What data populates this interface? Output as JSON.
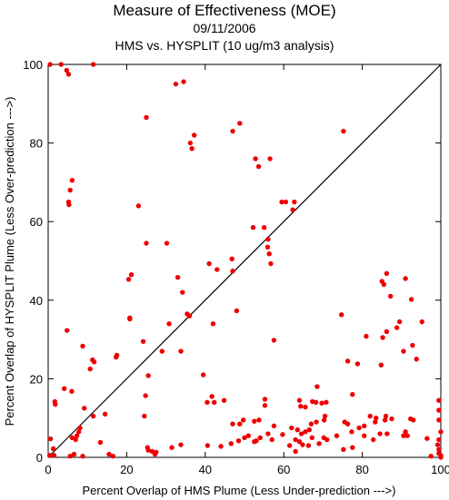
{
  "chart_data": {
    "type": "scatter",
    "title": "Measure of Effectiveness (MOE)",
    "subtitle_date": "09/11/2006",
    "subtitle_analysis": "HMS vs. HYSPLIT  (10 ug/m3 analysis)",
    "xlabel": "Percent Overlap of HMS Plume (Less Under-prediction --->)",
    "ylabel": "Percent Overlap of HYSPLIT Plume (Less Over-prediction --->)",
    "xlim": [
      0,
      100
    ],
    "ylim": [
      0,
      100
    ],
    "x_ticks": [
      "0",
      "20",
      "40",
      "60",
      "80",
      "100"
    ],
    "y_ticks": [
      "0",
      "20",
      "40",
      "60",
      "80",
      "100"
    ],
    "grid": false,
    "reference_line": "diagonal y = x",
    "point_color": "#ee0000",
    "series": [
      {
        "points": [
          [
            0.5,
            100
          ],
          [
            3.3,
            100
          ],
          [
            4.7,
            98.5
          ],
          [
            5.2,
            97.5
          ],
          [
            11.5,
            100
          ],
          [
            32.5,
            95
          ],
          [
            34.5,
            95.6
          ],
          [
            25,
            86.5
          ],
          [
            47,
            83
          ],
          [
            48.8,
            85
          ],
          [
            75.2,
            83
          ],
          [
            37.2,
            82
          ],
          [
            36.2,
            80
          ],
          [
            36.6,
            78.6
          ],
          [
            52.8,
            76
          ],
          [
            53.6,
            74
          ],
          [
            56.5,
            76
          ],
          [
            5.6,
            68
          ],
          [
            6.1,
            70.5
          ],
          [
            5.2,
            65
          ],
          [
            5.3,
            64.3
          ],
          [
            23,
            64
          ],
          [
            59.5,
            65
          ],
          [
            60.5,
            65
          ],
          [
            62.7,
            65
          ],
          [
            62.3,
            63
          ],
          [
            25,
            54.5
          ],
          [
            30.2,
            54.5
          ],
          [
            56,
            55.5
          ],
          [
            55.9,
            53.5
          ],
          [
            56.3,
            51.8
          ],
          [
            52.2,
            58.5
          ],
          [
            55,
            58.5
          ],
          [
            41,
            49.3
          ],
          [
            43,
            47.8
          ],
          [
            46.8,
            50.5
          ],
          [
            47,
            47.4
          ],
          [
            56.7,
            49.3
          ],
          [
            21.2,
            46.5
          ],
          [
            20.5,
            45.3
          ],
          [
            33,
            45.8
          ],
          [
            34.2,
            42
          ],
          [
            35.4,
            36.5
          ],
          [
            36,
            36
          ],
          [
            48,
            37.3
          ],
          [
            42,
            34
          ],
          [
            30.8,
            34
          ],
          [
            20.8,
            35.5
          ],
          [
            20.8,
            35.2
          ],
          [
            24.2,
            29.5
          ],
          [
            57.5,
            29.8
          ],
          [
            74.7,
            36.3
          ],
          [
            4.8,
            32.3
          ],
          [
            85,
            44.8
          ],
          [
            85.5,
            44
          ],
          [
            86.2,
            46.8
          ],
          [
            87.2,
            41
          ],
          [
            91,
            45.5
          ],
          [
            92.5,
            40.2
          ],
          [
            95.2,
            34.5
          ],
          [
            89.5,
            34.5
          ],
          [
            88.8,
            33
          ],
          [
            86.2,
            32
          ],
          [
            81,
            30.8
          ],
          [
            85.2,
            30.5
          ],
          [
            92.8,
            28.5
          ],
          [
            93.8,
            25
          ],
          [
            90.5,
            27
          ],
          [
            84.8,
            23.5
          ],
          [
            76.3,
            24.5
          ],
          [
            78.8,
            23.8
          ],
          [
            77.5,
            16
          ],
          [
            8.8,
            28.3
          ],
          [
            11.3,
            24.8
          ],
          [
            11.7,
            24.3
          ],
          [
            10.7,
            22.5
          ],
          [
            17.5,
            26
          ],
          [
            17.3,
            25.5
          ],
          [
            29,
            27
          ],
          [
            33.8,
            27
          ],
          [
            25.5,
            20.8
          ],
          [
            24.8,
            15.7
          ],
          [
            24.5,
            10.5
          ],
          [
            4.1,
            17.5
          ],
          [
            6,
            16.8
          ],
          [
            9.2,
            12.5
          ],
          [
            11.5,
            10.5
          ],
          [
            14.5,
            11
          ],
          [
            1.7,
            14.2
          ],
          [
            1.8,
            13.5
          ],
          [
            0.6,
            4.7
          ],
          [
            1.3,
            2.2
          ],
          [
            1.5,
            0.5
          ],
          [
            0.4,
            0.5
          ],
          [
            6.1,
            5
          ],
          [
            7.8,
            6.5
          ],
          [
            8.1,
            7.5
          ],
          [
            7.3,
            5.5
          ],
          [
            7,
            4.5
          ],
          [
            5.6,
            0.3
          ],
          [
            8.8,
            0.3
          ],
          [
            6.6,
            0.8
          ],
          [
            13.3,
            3.8
          ],
          [
            15.5,
            0.8
          ],
          [
            16.5,
            0.3
          ],
          [
            25.3,
            2.5
          ],
          [
            25.5,
            1.8
          ],
          [
            26.5,
            1.5
          ],
          [
            27.5,
            1.3
          ],
          [
            27.2,
            0.8
          ],
          [
            31.5,
            2.5
          ],
          [
            33.8,
            3.2
          ],
          [
            39.5,
            21
          ],
          [
            41.7,
            15.5
          ],
          [
            42.3,
            14
          ],
          [
            44.8,
            14.5
          ],
          [
            40.5,
            14
          ],
          [
            47,
            8.5
          ],
          [
            48.8,
            8.5
          ],
          [
            49.7,
            9.5
          ],
          [
            52.5,
            9.2
          ],
          [
            53.7,
            9.5
          ],
          [
            55.2,
            14.8
          ],
          [
            55.2,
            13.2
          ],
          [
            57.5,
            8
          ],
          [
            59.7,
            5.8
          ],
          [
            56,
            6
          ],
          [
            57,
            4.5
          ],
          [
            54,
            5
          ],
          [
            53,
            4.2
          ],
          [
            52.5,
            4
          ],
          [
            51,
            5.5
          ],
          [
            50,
            5
          ],
          [
            40.6,
            3
          ],
          [
            44,
            2.8
          ],
          [
            46.6,
            3.5
          ],
          [
            48.5,
            4.2
          ],
          [
            64,
            14.5
          ],
          [
            64.3,
            13
          ],
          [
            65.5,
            12.8
          ],
          [
            67.3,
            14.2
          ],
          [
            68.2,
            14
          ],
          [
            69.7,
            13.8
          ],
          [
            70.8,
            14
          ],
          [
            68.5,
            18
          ],
          [
            70.5,
            10.5
          ],
          [
            70.3,
            9.5
          ],
          [
            68.3,
            9
          ],
          [
            67,
            8.5
          ],
          [
            66.5,
            7
          ],
          [
            65.5,
            6.5
          ],
          [
            64.5,
            6
          ],
          [
            63.5,
            7
          ],
          [
            62,
            7.5
          ],
          [
            63,
            4.5
          ],
          [
            64,
            4
          ],
          [
            64.8,
            3.2
          ],
          [
            66.3,
            3
          ],
          [
            67.2,
            5
          ],
          [
            69,
            3.5
          ],
          [
            70.2,
            5
          ],
          [
            71,
            4.5
          ],
          [
            63,
            1.5
          ],
          [
            61.5,
            3
          ],
          [
            73.5,
            5.5
          ],
          [
            75.5,
            9
          ],
          [
            76.3,
            8.5
          ],
          [
            77.3,
            6.5
          ],
          [
            79.2,
            7.5
          ],
          [
            80.5,
            8
          ],
          [
            80.5,
            5.5
          ],
          [
            82.8,
            4.5
          ],
          [
            84.5,
            6
          ],
          [
            85.8,
            9.5
          ],
          [
            86.3,
            6
          ],
          [
            87.5,
            9.8
          ],
          [
            82,
            10.5
          ],
          [
            83.5,
            10
          ],
          [
            83.3,
            9
          ],
          [
            86,
            10.5
          ],
          [
            92.3,
            9.8
          ],
          [
            93,
            9.5
          ],
          [
            91,
            6.5
          ],
          [
            90.5,
            5.5
          ],
          [
            91.5,
            5.5
          ],
          [
            96.5,
            4.8
          ],
          [
            97.5,
            0.3
          ],
          [
            75.2,
            2
          ],
          [
            77.5,
            2.5
          ],
          [
            99.5,
            14.5
          ],
          [
            99.5,
            12
          ],
          [
            99.5,
            9.5
          ],
          [
            100,
            6.5
          ],
          [
            99.5,
            4.5
          ],
          [
            99.2,
            3.2
          ],
          [
            99.5,
            2
          ],
          [
            99.5,
            1
          ],
          [
            100,
            0.5
          ],
          [
            100,
            0
          ]
        ]
      }
    ]
  }
}
